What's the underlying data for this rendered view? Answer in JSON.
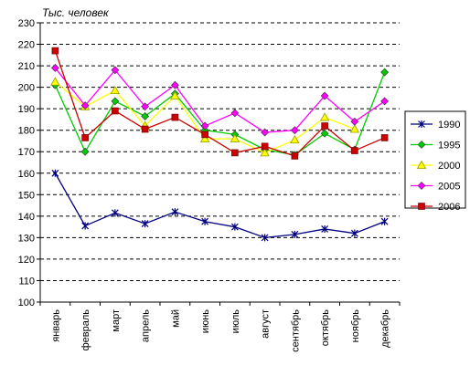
{
  "chart_data": {
    "type": "line",
    "title": "",
    "unit_label": "Тыс. человек",
    "xlabel": "",
    "ylabel": "",
    "ylim": [
      100,
      230
    ],
    "ytick_step": 10,
    "yticks": [
      "100",
      "110",
      "120",
      "130",
      "140",
      "150",
      "160",
      "170",
      "180",
      "190",
      "200",
      "210",
      "220",
      "230"
    ],
    "grid": true,
    "legend_position": "right",
    "categories": [
      "январь",
      "февраль",
      "март",
      "апрель",
      "май",
      "июнь",
      "июль",
      "август",
      "сентябрь",
      "октябрь",
      "ноябрь",
      "декабрь"
    ],
    "series": [
      {
        "name": "1990",
        "color": "#000080",
        "marker": "star",
        "values": [
          160,
          135.5,
          141.5,
          136.5,
          142,
          137.5,
          135,
          130,
          131.5,
          134,
          132,
          137.5
        ]
      },
      {
        "name": "1995",
        "color": "#00cc00",
        "marker": "diamond",
        "values": [
          201,
          170,
          193.5,
          186.5,
          197,
          180,
          178,
          171,
          168.5,
          178.5,
          171,
          207
        ]
      },
      {
        "name": "2000",
        "color": "#ffff00",
        "marker": "triangle",
        "values": [
          202.5,
          191,
          198.5,
          182,
          196,
          176,
          176,
          169.5,
          175.5,
          186,
          180.5,
          null
        ]
      },
      {
        "name": "2005",
        "color": "#ff00ff",
        "marker": "diamond",
        "values": [
          209,
          191.5,
          208,
          191,
          201,
          182,
          188,
          179,
          180,
          196,
          184,
          193.5
        ]
      },
      {
        "name": "2006",
        "color": "#cc0000",
        "marker": "square",
        "values": [
          217,
          176.5,
          189,
          180.5,
          186,
          178,
          169.5,
          172.5,
          168,
          182,
          170.5,
          176.5
        ]
      }
    ]
  }
}
